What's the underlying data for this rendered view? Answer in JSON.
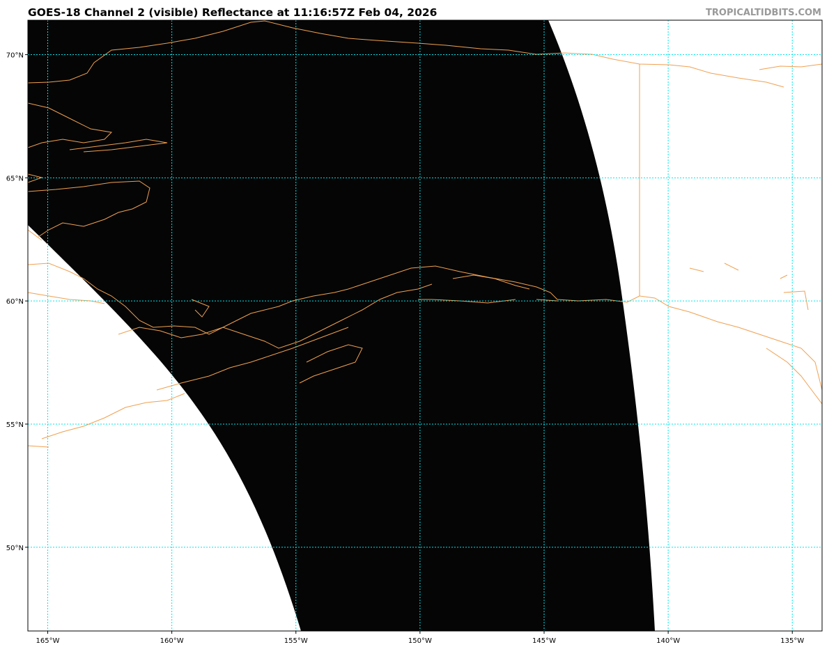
{
  "title": "GOES-18 Channel 2 (visible) Reflectance at 11:16:57Z Feb 04, 2026",
  "credit": "TROPICALTIDBITS.COM",
  "map": {
    "projection": "cylindrical",
    "lon_range": [
      -165.8,
      -133.8
    ],
    "lat_range": [
      46.6,
      71.4
    ],
    "grid_color": "#00e5ee",
    "coastline_color": "#f0a050",
    "swath_color": "#050505",
    "lon_ticks": [
      {
        "value": -165,
        "label": "165°W"
      },
      {
        "value": -160,
        "label": "160°W"
      },
      {
        "value": -155,
        "label": "155°W"
      },
      {
        "value": -150,
        "label": "150°W"
      },
      {
        "value": -145,
        "label": "145°W"
      },
      {
        "value": -140,
        "label": "140°W"
      },
      {
        "value": -135,
        "label": "135°W"
      }
    ],
    "lat_ticks": [
      {
        "value": 70,
        "label": "70°N"
      },
      {
        "value": 65,
        "label": "65°N"
      },
      {
        "value": 60,
        "label": "60°N"
      },
      {
        "value": 55,
        "label": "55°N"
      },
      {
        "value": 50,
        "label": "50°N"
      }
    ]
  }
}
